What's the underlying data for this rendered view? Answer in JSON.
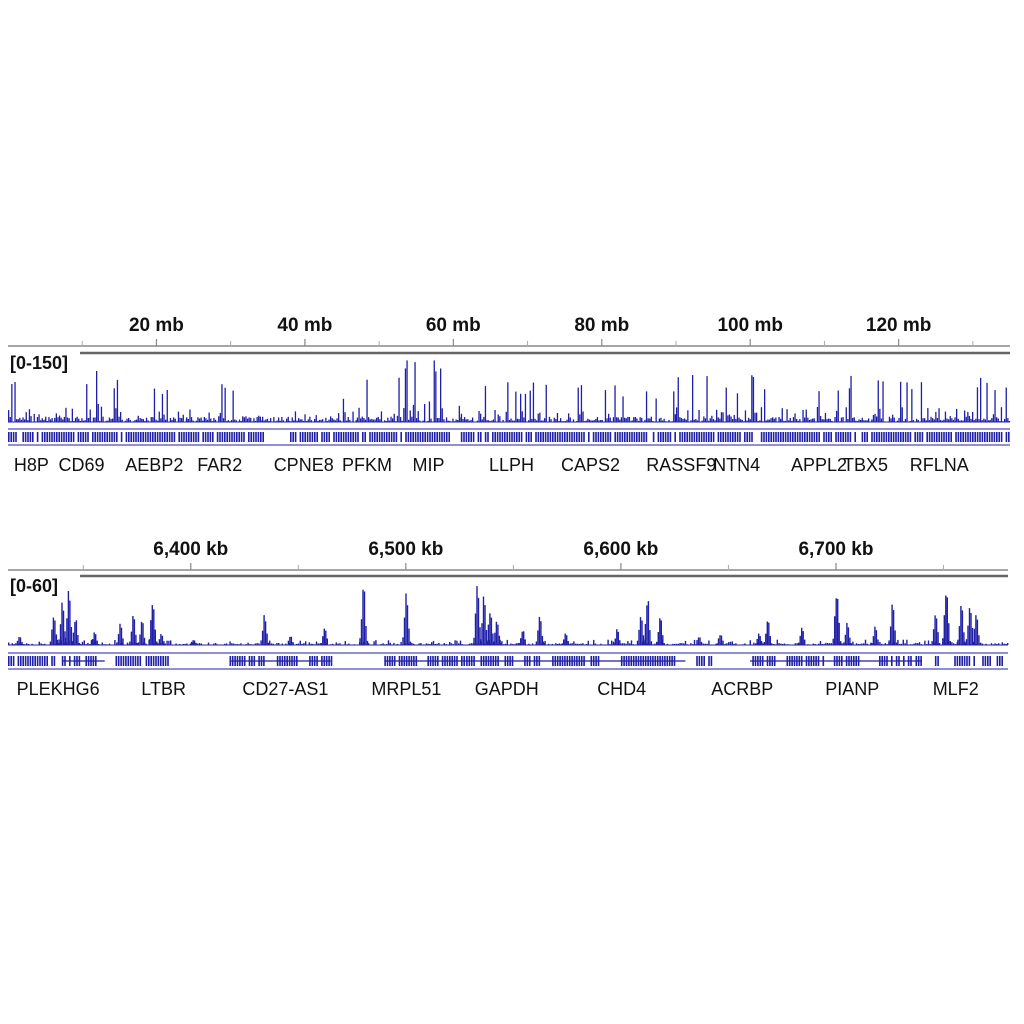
{
  "colors": {
    "signal": "#1f1fa8",
    "axis": "#888888",
    "text": "#111111"
  },
  "panels": [
    {
      "name": "chromosome-wide",
      "range_label": "[0-150]",
      "scale": "mb",
      "start": 0,
      "end": 135,
      "ticks": [
        {
          "label": "20 mb",
          "value": 20
        },
        {
          "label": "40 mb",
          "value": 40
        },
        {
          "label": "60 mb",
          "value": 60
        },
        {
          "label": "80 mb",
          "value": 80
        },
        {
          "label": "100 mb",
          "value": 100
        },
        {
          "label": "120 mb",
          "value": 120
        }
      ],
      "minor_ticks": [
        10,
        30,
        50,
        70,
        90,
        110,
        130
      ],
      "gene_labels": [
        "H8P",
        "CD69",
        "AEBP2",
        "FAR2",
        "CPNE8",
        "PFKM",
        "MIP",
        "LLPH",
        "CAPS2",
        "RASSF9",
        "NTN4",
        "APPL2",
        "TBX5",
        "RFLNA"
      ],
      "gene_label_positions": [
        0.8,
        6.8,
        15.8,
        25.5,
        35.8,
        45.0,
        54.5,
        64.8,
        74.5,
        86.0,
        95.0,
        105.5,
        112.5,
        121.5
      ],
      "density": [
        [
          0,
          5,
          0.45
        ],
        [
          5,
          6,
          0.25
        ],
        [
          6,
          11,
          0.6
        ],
        [
          11,
          17.5,
          0.7
        ],
        [
          17.5,
          19,
          0.05
        ],
        [
          19,
          24,
          0.35
        ],
        [
          24,
          25.5,
          0.05
        ],
        [
          25.5,
          34,
          0.45
        ],
        [
          34,
          38,
          0.05
        ],
        [
          38,
          47,
          0.35
        ],
        [
          47,
          59,
          0.85
        ],
        [
          59,
          61,
          0.1
        ],
        [
          61,
          84,
          0.45
        ],
        [
          84,
          90,
          0.35
        ],
        [
          90,
          135,
          0.55
        ]
      ],
      "gene_blocks": [
        [
          0,
          34.5
        ],
        [
          38,
          59.5
        ],
        [
          61,
          135
        ]
      ],
      "signal_seed": 7
    },
    {
      "name": "gapdh-region",
      "range_label": "[0-60]",
      "scale": "kb",
      "start": 6315,
      "end": 6780,
      "ticks": [
        {
          "label": "6,400 kb",
          "value": 6400
        },
        {
          "label": "6,500 kb",
          "value": 6500
        },
        {
          "label": "6,600 kb",
          "value": 6600
        },
        {
          "label": "6,700 kb",
          "value": 6700
        }
      ],
      "minor_ticks": [
        6350,
        6450,
        6550,
        6650,
        6750
      ],
      "gene_labels": [
        "PLEKHG6",
        "LTBR",
        "CD27-AS1",
        "MRPL51",
        "GAPDH",
        "CHD4",
        "ACRBP",
        "PIANP",
        "MLF2"
      ],
      "gene_label_positions": [
        6319,
        6377,
        6424,
        6484,
        6532,
        6589,
        6642,
        6695,
        6745
      ],
      "peaks": [
        [
          6320,
          0.15
        ],
        [
          6336,
          0.5
        ],
        [
          6340,
          0.7
        ],
        [
          6343,
          0.9
        ],
        [
          6346,
          0.45
        ],
        [
          6355,
          0.2
        ],
        [
          6367,
          0.35
        ],
        [
          6373,
          0.5
        ],
        [
          6377,
          0.4
        ],
        [
          6382,
          0.8
        ],
        [
          6386,
          0.2
        ],
        [
          6401,
          0.1
        ],
        [
          6434,
          0.55
        ],
        [
          6446,
          0.15
        ],
        [
          6462,
          0.3
        ],
        [
          6480,
          0.95
        ],
        [
          6500,
          0.9
        ],
        [
          6533,
          0.95
        ],
        [
          6536,
          0.8
        ],
        [
          6539,
          0.6
        ],
        [
          6542,
          0.45
        ],
        [
          6554,
          0.25
        ],
        [
          6562,
          0.5
        ],
        [
          6574,
          0.2
        ],
        [
          6598,
          0.25
        ],
        [
          6609,
          0.5
        ],
        [
          6612,
          0.8
        ],
        [
          6618,
          0.45
        ],
        [
          6636,
          0.15
        ],
        [
          6646,
          0.2
        ],
        [
          6664,
          0.2
        ],
        [
          6668,
          0.4
        ],
        [
          6684,
          0.3
        ],
        [
          6700,
          0.95
        ],
        [
          6705,
          0.35
        ],
        [
          6718,
          0.3
        ],
        [
          6726,
          0.7
        ],
        [
          6746,
          0.55
        ],
        [
          6751,
          0.95
        ],
        [
          6758,
          0.65
        ],
        [
          6762,
          0.75
        ],
        [
          6765,
          0.5
        ]
      ],
      "gene_blocks": [
        [
          6315,
          6337
        ],
        [
          6340,
          6348
        ],
        [
          6351,
          6356
        ],
        [
          6365,
          6377
        ],
        [
          6379,
          6390
        ],
        [
          6418,
          6434
        ],
        [
          6440,
          6450
        ],
        [
          6455,
          6466
        ],
        [
          6490,
          6505
        ],
        [
          6510,
          6527
        ],
        [
          6528,
          6550
        ],
        [
          6555,
          6562
        ],
        [
          6568,
          6590
        ],
        [
          6600,
          6625
        ],
        [
          6635,
          6642
        ],
        [
          6660,
          6672
        ],
        [
          6677,
          6695
        ],
        [
          6699,
          6712
        ],
        [
          6720,
          6735
        ],
        [
          6737,
          6740
        ],
        [
          6746,
          6748
        ],
        [
          6755,
          6765
        ],
        [
          6768,
          6778
        ]
      ],
      "gene_lines": [
        [
          6340,
          6360
        ],
        [
          6418,
          6465
        ],
        [
          6490,
          6630
        ],
        [
          6660,
          6740
        ]
      ],
      "signal_seed": 13
    }
  ]
}
